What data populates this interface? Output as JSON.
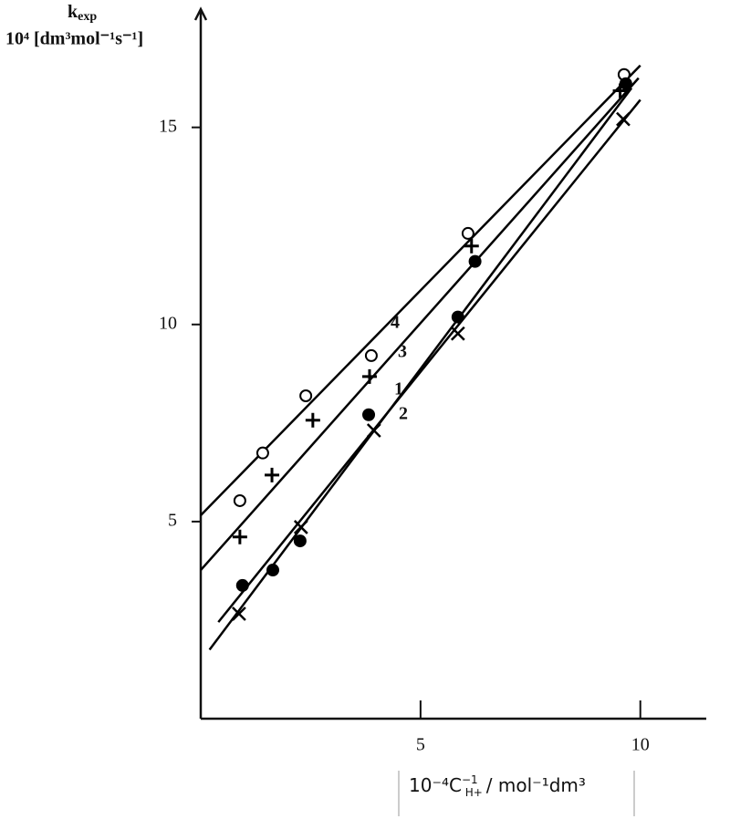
{
  "chart_data": {
    "type": "scatter",
    "y_label_main": "k",
    "y_label_sub": "exp",
    "y_label_unit": "10⁴ [dm³mol⁻¹s⁻¹]",
    "x_label_main": "10⁻⁴C",
    "x_label_sup": "−1",
    "x_label_sub": "H+",
    "x_label_rest": "/ mol⁻¹dm³",
    "xlim": [
      0,
      11.5
    ],
    "ylim": [
      0,
      18
    ],
    "xticks": [
      5,
      10
    ],
    "yticks": [
      5,
      10,
      15
    ],
    "grid": false,
    "series": [
      {
        "name": "4",
        "marker": "open-circle",
        "color": "#000000",
        "x": [
          0.89,
          1.41,
          2.39,
          3.88,
          6.08,
          9.63
        ],
        "values": [
          5.53,
          6.74,
          8.19,
          9.21,
          12.31,
          16.34
        ],
        "fit_x": [
          0,
          10
        ],
        "fit_y": [
          5.16,
          16.57
        ]
      },
      {
        "name": "3",
        "marker": "plus",
        "color": "#000000",
        "x": [
          0.89,
          1.62,
          2.55,
          3.84,
          6.16,
          9.54
        ],
        "values": [
          4.61,
          6.18,
          7.57,
          8.68,
          11.99,
          15.93
        ],
        "fit_x": [
          0,
          9.96
        ],
        "fit_y": [
          3.77,
          16.25
        ]
      },
      {
        "name": "1",
        "marker": "filled-circle",
        "color": "#000000",
        "x": [
          0.95,
          1.64,
          2.26,
          3.82,
          5.85,
          6.24,
          9.67
        ],
        "values": [
          3.38,
          3.77,
          4.51,
          7.71,
          10.19,
          11.6,
          16.11
        ],
        "fit_x": [
          0.2,
          9.8
        ],
        "fit_y": [
          1.75,
          16.0
        ]
      },
      {
        "name": "2",
        "marker": "cross",
        "color": "#000000",
        "x": [
          0.87,
          2.28,
          3.94,
          5.85,
          9.61
        ],
        "values": [
          2.66,
          4.86,
          7.31,
          9.77,
          15.21
        ],
        "fit_x": [
          0.4,
          10
        ],
        "fit_y": [
          2.45,
          15.7
        ]
      }
    ]
  }
}
